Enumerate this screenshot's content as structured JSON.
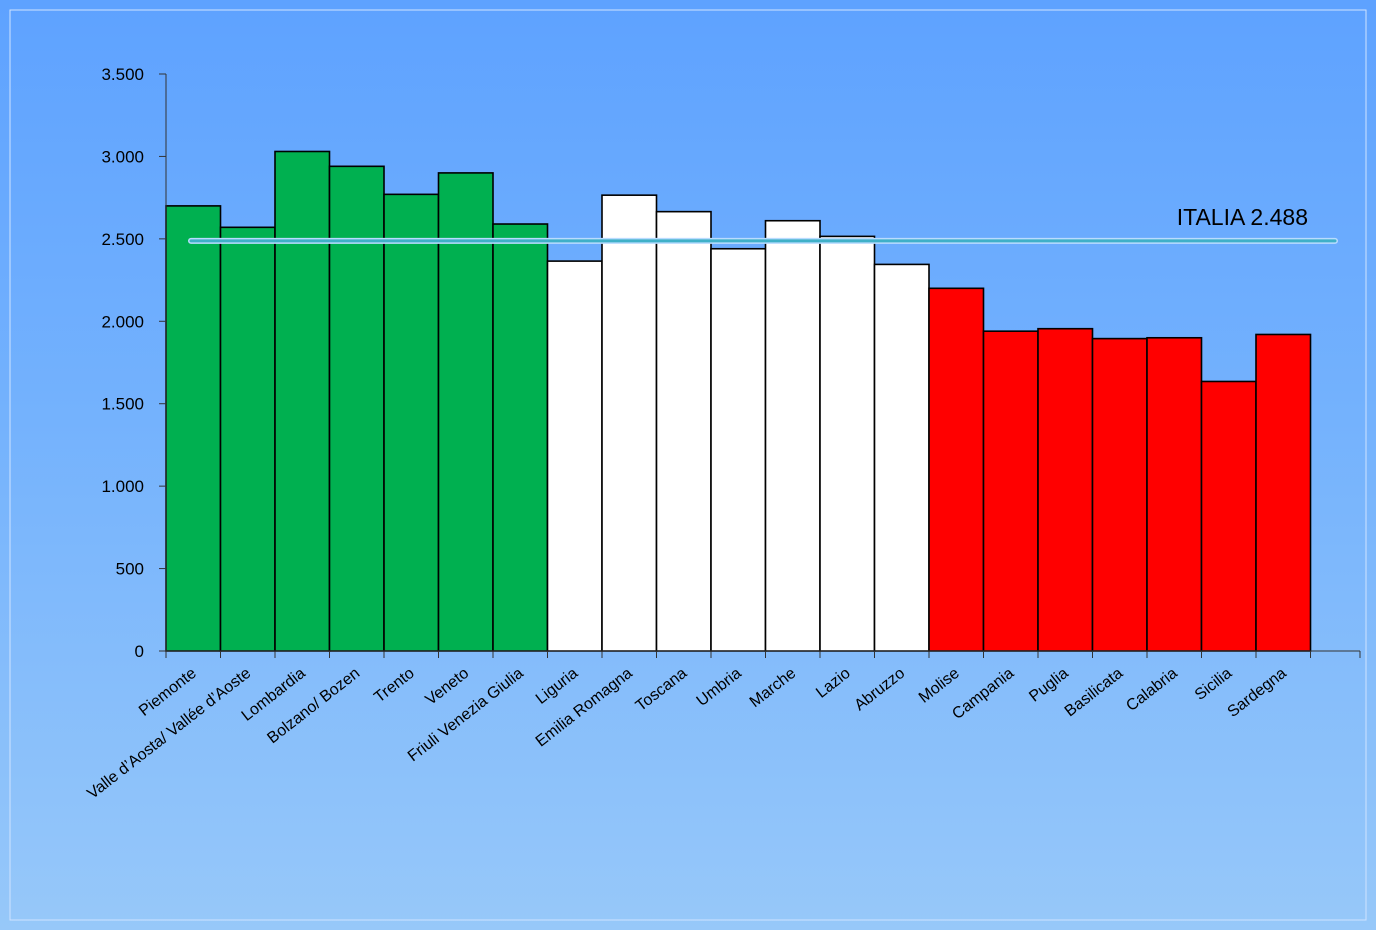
{
  "chart_data": {
    "type": "bar",
    "categories": [
      "Piemonte",
      "Valle d’Aosta/ Vallée d’Aoste",
      "Lombardia",
      "Bolzano/ Bozen",
      "Trento",
      "Veneto",
      "Friuli Venezia Giulia",
      "Liguria",
      "Emilia Romagna",
      "Toscana",
      "Umbria",
      "Marche",
      "Lazio",
      "Abruzzo",
      "Molise",
      "Campania",
      "Puglia",
      "Basilicata",
      "Calabria",
      "Sicilia",
      "Sardegna"
    ],
    "values": [
      2700,
      2570,
      3030,
      2940,
      2770,
      2900,
      2590,
      2365,
      2765,
      2665,
      2440,
      2610,
      2515,
      2345,
      2200,
      1940,
      1955,
      1895,
      1900,
      1635,
      1920
    ],
    "colors": [
      "#00b050",
      "#00b050",
      "#00b050",
      "#00b050",
      "#00b050",
      "#00b050",
      "#00b050",
      "#ffffff",
      "#ffffff",
      "#ffffff",
      "#ffffff",
      "#ffffff",
      "#ffffff",
      "#ffffff",
      "#ff0000",
      "#ff0000",
      "#ff0000",
      "#ff0000",
      "#ff0000",
      "#ff0000",
      "#ff0000"
    ],
    "ylim": [
      0,
      3500
    ],
    "yticks": [
      0,
      500,
      1000,
      1500,
      2000,
      2500,
      3000,
      3500
    ],
    "ytick_labels": [
      "0",
      "500",
      "1.000",
      "1.500",
      "2.000",
      "2.500",
      "3.000",
      "3.500"
    ],
    "reference_line": {
      "value": 2488,
      "label": "ITALIA 2.488",
      "color": "#3fb0c8"
    },
    "title": "",
    "xlabel": "",
    "ylabel": "",
    "grid": false,
    "legend": "none"
  }
}
